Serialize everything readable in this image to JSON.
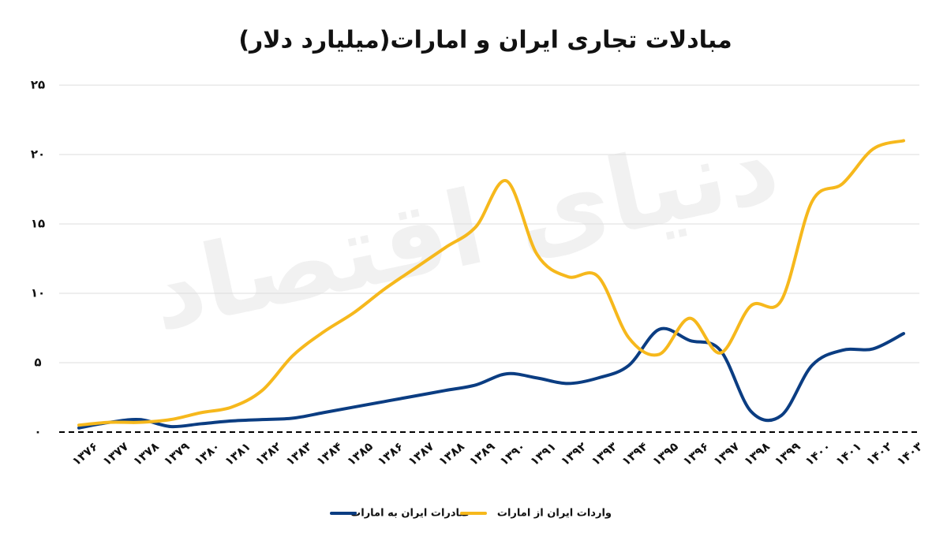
{
  "chart_data": {
    "type": "line",
    "title": "مبادلات تجاری ایران و امارات(میلیارد دلار)",
    "watermark": "دنیای اقتصاد",
    "categories": [
      "۱۳۷۶",
      "۱۳۷۷",
      "۱۳۷۸",
      "۱۳۷۹",
      "۱۳۸۰",
      "۱۳۸۱",
      "۱۳۸۲",
      "۱۳۸۳",
      "۱۳۸۴",
      "۱۳۸۵",
      "۱۳۸۶",
      "۱۳۸۷",
      "۱۳۸۸",
      "۱۳۸۹",
      "۱۳۹۰",
      "۱۳۹۱",
      "۱۳۹۲",
      "۱۳۹۳",
      "۱۳۹۴",
      "۱۳۹۵",
      "۱۳۹۶",
      "۱۳۹۷",
      "۱۳۹۸",
      "۱۳۹۹",
      "۱۴۰۰",
      "۱۴۰۱",
      "۱۴۰۲",
      "۱۴۰۳"
    ],
    "series": [
      {
        "name": "صادرات ایران به امارات",
        "color": "#0b3d82",
        "values": [
          0.3,
          0.7,
          0.9,
          0.4,
          0.6,
          0.8,
          0.9,
          1.0,
          1.4,
          1.8,
          2.2,
          2.6,
          3.0,
          3.4,
          4.2,
          3.9,
          3.5,
          3.9,
          4.8,
          7.4,
          6.6,
          5.9,
          1.5,
          1.2,
          4.8,
          5.9,
          6.0,
          7.1
        ]
      },
      {
        "name": "واردات ایران از امارات",
        "color": "#f6b81c",
        "values": [
          0.5,
          0.7,
          0.7,
          0.9,
          1.4,
          1.8,
          3.0,
          5.5,
          7.2,
          8.6,
          10.3,
          11.8,
          13.3,
          14.8,
          18.1,
          12.8,
          11.2,
          11.2,
          6.8,
          5.6,
          8.2,
          5.7,
          9.1,
          9.5,
          16.6,
          17.9,
          20.4,
          21.0
        ]
      }
    ],
    "ylim": [
      0,
      25
    ],
    "yticks": [
      {
        "value": 0,
        "label": "۰"
      },
      {
        "value": 5,
        "label": "۵"
      },
      {
        "value": 10,
        "label": "۱۰"
      },
      {
        "value": 15,
        "label": "۱۵"
      },
      {
        "value": 20,
        "label": "۲۰"
      },
      {
        "value": 25,
        "label": "۲۵"
      }
    ],
    "grid": true,
    "legend": "bottom"
  }
}
